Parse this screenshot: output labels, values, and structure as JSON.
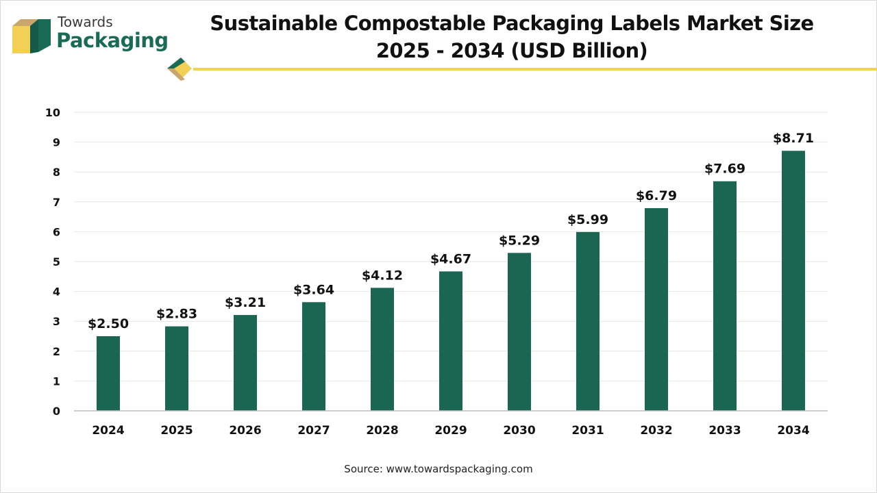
{
  "brand": {
    "line1": "Towards",
    "line2": "Packaging",
    "colors": {
      "green": "#1a6b55",
      "gold": "#f2cf55",
      "tan": "#c9a66b"
    }
  },
  "header": {
    "title_line1": "Sustainable Compostable Packaging Labels Market Size",
    "title_line2": "2025 - 2034 (USD Billion)"
  },
  "chart_data": {
    "type": "bar",
    "categories": [
      "2024",
      "2025",
      "2026",
      "2027",
      "2028",
      "2029",
      "2030",
      "2031",
      "2032",
      "2033",
      "2034"
    ],
    "values": [
      2.5,
      2.83,
      3.21,
      3.64,
      4.12,
      4.67,
      5.29,
      5.99,
      6.79,
      7.69,
      8.71
    ],
    "data_labels": [
      "$2.50",
      "$2.83",
      "$3.21",
      "$3.64",
      "$4.12",
      "$4.67",
      "$5.29",
      "$5.99",
      "$6.79",
      "$7.69",
      "$8.71"
    ],
    "title": "Sustainable Compostable Packaging Labels Market Size 2025 - 2034 (USD Billion)",
    "xlabel": "",
    "ylabel": "",
    "ylim": [
      0,
      10
    ],
    "yticks": [
      "0",
      "1",
      "2",
      "3",
      "4",
      "5",
      "6",
      "7",
      "8",
      "9",
      "10"
    ],
    "grid": true,
    "legend": "none",
    "bar_color": "#1a6652"
  },
  "footer": {
    "source": "Source: www.towardspackaging.com"
  }
}
